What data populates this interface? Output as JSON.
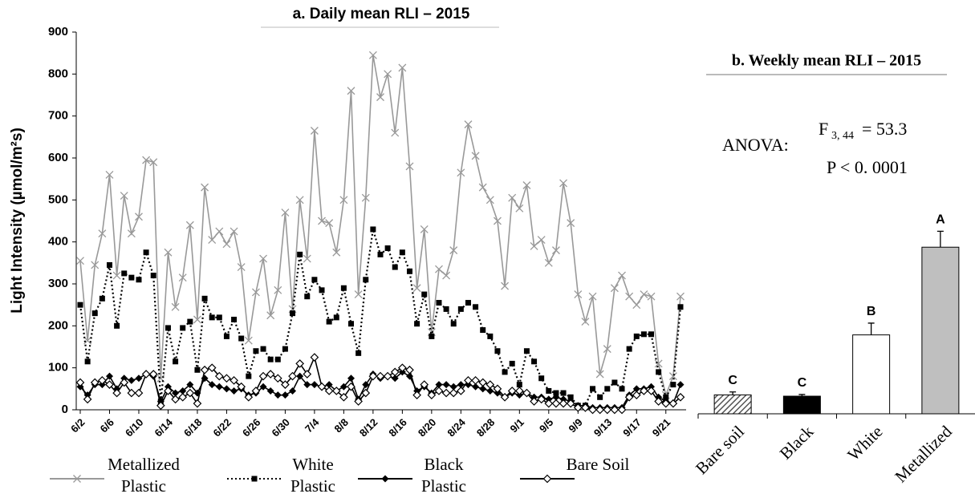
{
  "chart_data": [
    {
      "type": "line",
      "title": "a. Daily mean RLI – 2015",
      "y_label": "Light Intensity (µmol/m²s)",
      "categories": [
        "6/2",
        null,
        null,
        null,
        "6/6",
        null,
        null,
        null,
        "6/10",
        null,
        null,
        null,
        "6/14",
        null,
        null,
        null,
        "6/18",
        null,
        null,
        null,
        "6/22",
        null,
        null,
        null,
        "6/26",
        null,
        null,
        null,
        "6/30",
        null,
        null,
        null,
        "7/4",
        null,
        null,
        null,
        "8/8",
        null,
        null,
        null,
        "8/12",
        null,
        null,
        null,
        "8/16",
        null,
        null,
        null,
        "8/20",
        null,
        null,
        null,
        "8/24",
        null,
        null,
        null,
        "8/28",
        null,
        null,
        null,
        "9/1",
        null,
        null,
        null,
        "9/5",
        null,
        null,
        null,
        "9/9",
        null,
        null,
        null,
        "9/13",
        null,
        null,
        null,
        "9/17",
        null,
        null,
        null,
        "9/21",
        null,
        null
      ],
      "ylim": [
        0,
        900
      ],
      "yticks": [
        0,
        100,
        200,
        300,
        400,
        500,
        600,
        700,
        800,
        900
      ],
      "series": [
        {
          "name": "Metallized Plastic",
          "color": "#999999",
          "marker": "x",
          "dash": "solid",
          "values": [
            355,
            165,
            345,
            420,
            560,
            320,
            510,
            420,
            460,
            595,
            590,
            75,
            375,
            245,
            315,
            440,
            215,
            530,
            405,
            425,
            395,
            425,
            340,
            165,
            280,
            360,
            225,
            285,
            470,
            240,
            500,
            360,
            665,
            450,
            445,
            375,
            500,
            760,
            275,
            505,
            845,
            745,
            800,
            660,
            815,
            580,
            290,
            430,
            185,
            335,
            320,
            380,
            565,
            680,
            605,
            530,
            500,
            450,
            295,
            505,
            480,
            535,
            390,
            405,
            350,
            380,
            540,
            445,
            275,
            210,
            270,
            85,
            145,
            290,
            320,
            270,
            250,
            275,
            270,
            110,
            35,
            80,
            270
          ]
        },
        {
          "name": "White Plastic",
          "color": "#000000",
          "marker": "square",
          "dash": "dotted",
          "values": [
            250,
            115,
            230,
            265,
            345,
            200,
            325,
            315,
            310,
            375,
            320,
            20,
            195,
            115,
            195,
            210,
            95,
            265,
            220,
            220,
            175,
            215,
            170,
            80,
            140,
            145,
            120,
            120,
            145,
            230,
            370,
            270,
            310,
            285,
            210,
            220,
            290,
            205,
            135,
            310,
            430,
            370,
            385,
            340,
            375,
            330,
            205,
            275,
            175,
            255,
            240,
            205,
            240,
            255,
            245,
            190,
            175,
            140,
            90,
            110,
            60,
            140,
            115,
            75,
            45,
            40,
            40,
            30,
            10,
            10,
            50,
            30,
            50,
            65,
            50,
            145,
            175,
            180,
            180,
            90,
            30,
            60,
            245
          ]
        },
        {
          "name": "Black Plastic",
          "color": "#000000",
          "marker": "diamond",
          "dash": "solid",
          "values": [
            55,
            35,
            60,
            60,
            80,
            50,
            75,
            70,
            75,
            85,
            80,
            20,
            55,
            40,
            45,
            60,
            40,
            75,
            60,
            55,
            50,
            45,
            50,
            35,
            40,
            55,
            45,
            35,
            35,
            45,
            80,
            60,
            60,
            55,
            60,
            45,
            55,
            75,
            25,
            60,
            85,
            75,
            80,
            75,
            90,
            80,
            45,
            55,
            40,
            60,
            60,
            55,
            60,
            60,
            55,
            50,
            45,
            40,
            30,
            40,
            35,
            40,
            30,
            30,
            25,
            30,
            25,
            20,
            10,
            10,
            5,
            5,
            5,
            5,
            5,
            35,
            50,
            50,
            55,
            30,
            20,
            15,
            60
          ]
        },
        {
          "name": "Bare Soil",
          "color": "#000000",
          "marker": "open-diamond",
          "dash": "solid",
          "values": [
            65,
            25,
            65,
            70,
            60,
            40,
            65,
            40,
            40,
            85,
            85,
            10,
            45,
            25,
            30,
            40,
            15,
            95,
            100,
            80,
            75,
            70,
            55,
            30,
            45,
            80,
            85,
            75,
            60,
            80,
            110,
            85,
            125,
            55,
            45,
            45,
            30,
            55,
            20,
            40,
            80,
            80,
            80,
            90,
            100,
            95,
            35,
            60,
            35,
            45,
            40,
            40,
            45,
            70,
            70,
            65,
            60,
            50,
            30,
            45,
            45,
            40,
            20,
            25,
            15,
            15,
            15,
            15,
            5,
            5,
            0,
            0,
            0,
            0,
            0,
            30,
            35,
            45,
            45,
            20,
            15,
            15,
            30
          ]
        }
      ]
    },
    {
      "type": "bar",
      "title": "b. Weekly mean RLI – 2015",
      "anova_label": "ANOVA:",
      "f_text": "F",
      "f_subscript": "3, 44",
      "f_value": "= 53.3",
      "p_text": "P < 0. 0001",
      "categories": [
        "Bare soil",
        "Black",
        "White",
        "Metallized"
      ],
      "values": [
        45,
        42,
        188,
        397
      ],
      "errors": [
        7,
        4,
        28,
        38
      ],
      "letters": [
        "C",
        "C",
        "B",
        "A"
      ],
      "colors": [
        "#888888",
        "#000000",
        "#ffffff",
        "#bfbfbf"
      ],
      "hatch": [
        true,
        false,
        false,
        false
      ],
      "ylim": [
        0,
        900
      ]
    }
  ]
}
